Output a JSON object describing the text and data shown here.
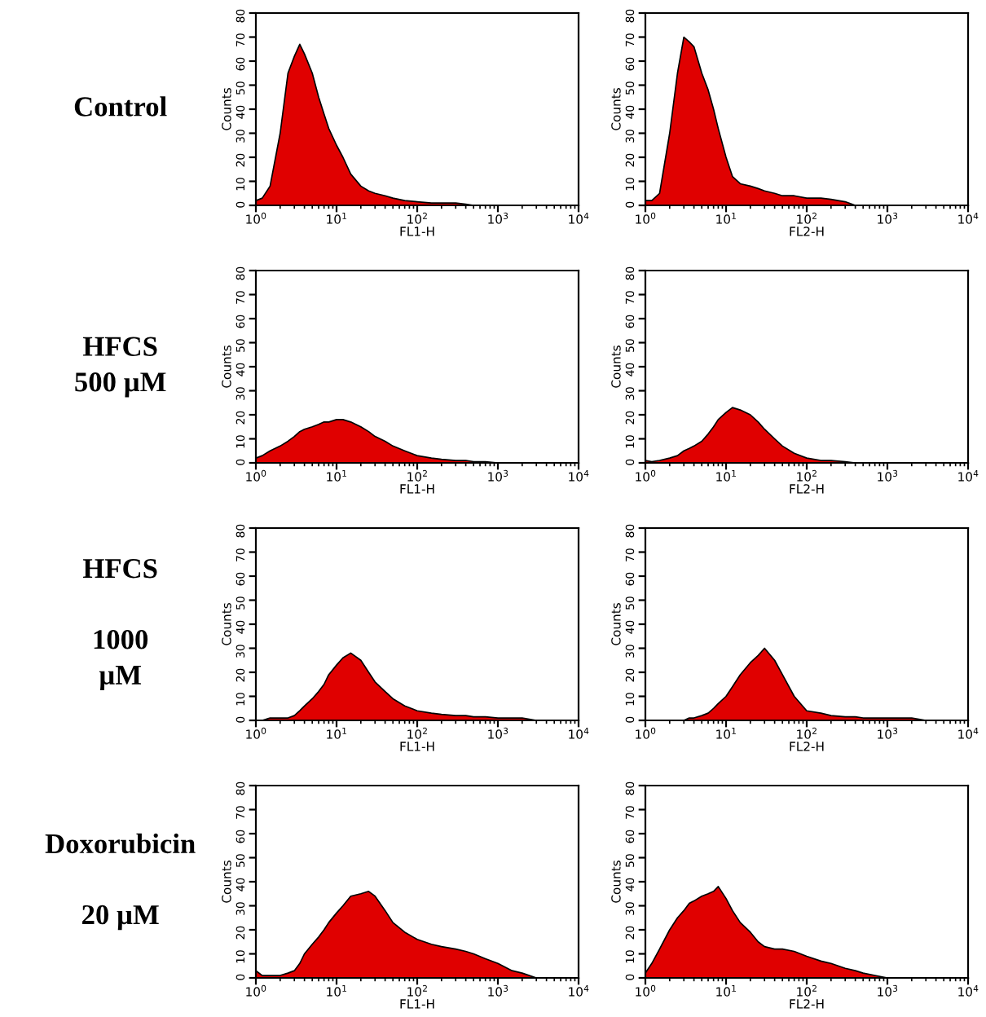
{
  "chart_data": [
    {
      "type": "area",
      "xlabel": "FL1-H",
      "ylabel": "Counts",
      "log": "x",
      "xlim": [
        1,
        10000
      ],
      "ylim": [
        0,
        80
      ],
      "xticks": [
        {
          "value": 1,
          "label": "10$^{0}$"
        },
        {
          "value": 10,
          "label": "10$^{1}$"
        },
        {
          "value": 100,
          "label": "10$^{2}$"
        },
        {
          "value": 1000,
          "label": "10$^{3}$"
        },
        {
          "value": 10000,
          "label": "10$^{4}$"
        }
      ],
      "yticks": [
        0,
        10,
        20,
        30,
        40,
        50,
        60,
        70,
        80
      ],
      "annotations": [
        "Control"
      ],
      "x": [
        1,
        1.2,
        1.5,
        2,
        2.5,
        3,
        3.5,
        4,
        5,
        6,
        7,
        8,
        10,
        12,
        15,
        20,
        25,
        30,
        40,
        50,
        70,
        100,
        150,
        200,
        300,
        400,
        500,
        700,
        1000,
        1500,
        2000,
        3000,
        5000,
        10000
      ],
      "series": [
        {
          "color": "#e00000",
          "values": [
            2,
            3,
            8,
            30,
            55,
            62,
            67,
            63,
            55,
            45,
            38,
            32,
            25,
            20,
            13,
            8,
            6,
            5,
            4,
            3,
            2,
            1.5,
            1,
            1,
            1,
            0.5,
            0,
            0,
            0,
            0,
            0,
            0,
            0,
            0
          ]
        }
      ]
    },
    {
      "type": "area",
      "xlabel": "FL2-H",
      "ylabel": "Counts",
      "log": "x",
      "xlim": [
        1,
        10000
      ],
      "ylim": [
        0,
        80
      ],
      "xticks": [
        {
          "value": 1,
          "label": "10$^{0}$"
        },
        {
          "value": 10,
          "label": "10$^{1}$"
        },
        {
          "value": 100,
          "label": "10$^{2}$"
        },
        {
          "value": 1000,
          "label": "10$^{3}$"
        },
        {
          "value": 10000,
          "label": "10$^{4}$"
        }
      ],
      "yticks": [
        0,
        10,
        20,
        30,
        40,
        50,
        60,
        70,
        80
      ],
      "x": [
        1,
        1.2,
        1.5,
        2,
        2.5,
        3,
        3.5,
        4,
        5,
        6,
        7,
        8,
        10,
        12,
        15,
        20,
        25,
        30,
        40,
        50,
        70,
        100,
        150,
        200,
        300,
        400,
        500,
        700,
        1000,
        1500,
        2000,
        3000,
        5000,
        10000
      ],
      "series": [
        {
          "color": "#e00000",
          "values": [
            2,
            2,
            5,
            30,
            55,
            70,
            68,
            66,
            55,
            48,
            40,
            32,
            20,
            12,
            9,
            8,
            7,
            6,
            5,
            4,
            4,
            3,
            3,
            2.5,
            1.5,
            0,
            0,
            0,
            0,
            0,
            0,
            0,
            0,
            0
          ]
        }
      ]
    },
    {
      "type": "area",
      "xlabel": "FL1-H",
      "ylabel": "Counts",
      "log": "x",
      "xlim": [
        1,
        10000
      ],
      "ylim": [
        0,
        80
      ],
      "xticks": [
        {
          "value": 1,
          "label": "10$^{0}$"
        },
        {
          "value": 10,
          "label": "10$^{1}$"
        },
        {
          "value": 100,
          "label": "10$^{2}$"
        },
        {
          "value": 1000,
          "label": "10$^{3}$"
        },
        {
          "value": 10000,
          "label": "10$^{4}$"
        }
      ],
      "yticks": [
        0,
        10,
        20,
        30,
        40,
        50,
        60,
        70,
        80
      ],
      "annotations": [
        "HFCS\n500 µM"
      ],
      "x": [
        1,
        1.2,
        1.5,
        2,
        2.5,
        3,
        3.5,
        4,
        5,
        6,
        7,
        8,
        10,
        12,
        15,
        20,
        25,
        30,
        40,
        50,
        70,
        100,
        150,
        200,
        300,
        400,
        500,
        700,
        1000,
        1500,
        2000,
        3000,
        5000,
        10000
      ],
      "series": [
        {
          "color": "#e00000",
          "values": [
            2,
            3,
            5,
            7,
            9,
            11,
            13,
            14,
            15,
            16,
            17,
            17,
            18,
            18,
            17,
            15,
            13,
            11,
            9,
            7,
            5,
            3,
            2,
            1.5,
            1,
            1,
            0.5,
            0.5,
            0,
            0,
            0,
            0,
            0,
            0
          ]
        }
      ]
    },
    {
      "type": "area",
      "xlabel": "FL2-H",
      "ylabel": "Counts",
      "log": "x",
      "xlim": [
        1,
        10000
      ],
      "ylim": [
        0,
        80
      ],
      "xticks": [
        {
          "value": 1,
          "label": "10$^{0}$"
        },
        {
          "value": 10,
          "label": "10$^{1}$"
        },
        {
          "value": 100,
          "label": "10$^{2}$"
        },
        {
          "value": 1000,
          "label": "10$^{3}$"
        },
        {
          "value": 10000,
          "label": "10$^{4}$"
        }
      ],
      "yticks": [
        0,
        10,
        20,
        30,
        40,
        50,
        60,
        70,
        80
      ],
      "x": [
        1,
        1.2,
        1.5,
        2,
        2.5,
        3,
        3.5,
        4,
        5,
        6,
        7,
        8,
        10,
        12,
        15,
        20,
        25,
        30,
        40,
        50,
        70,
        100,
        150,
        200,
        300,
        400,
        500,
        700,
        1000,
        1500,
        2000,
        3000,
        5000,
        10000
      ],
      "series": [
        {
          "color": "#e00000",
          "values": [
            1,
            0.5,
            1,
            2,
            3,
            5,
            6,
            7,
            9,
            12,
            15,
            18,
            21,
            23,
            22,
            20,
            17,
            14,
            10,
            7,
            4,
            2,
            1,
            1,
            0.5,
            0,
            0,
            0,
            0,
            0,
            0,
            0,
            0,
            0
          ]
        }
      ]
    },
    {
      "type": "area",
      "xlabel": "FL1-H",
      "ylabel": "Counts",
      "log": "x",
      "xlim": [
        1,
        10000
      ],
      "ylim": [
        0,
        80
      ],
      "xticks": [
        {
          "value": 1,
          "label": "10$^{0}$"
        },
        {
          "value": 10,
          "label": "10$^{1}$"
        },
        {
          "value": 100,
          "label": "10$^{2}$"
        },
        {
          "value": 1000,
          "label": "10$^{3}$"
        },
        {
          "value": 10000,
          "label": "10$^{4}$"
        }
      ],
      "yticks": [
        0,
        10,
        20,
        30,
        40,
        50,
        60,
        70,
        80
      ],
      "annotations": [
        "HFCS\n\n1000\nµM"
      ],
      "x": [
        1,
        1.2,
        1.5,
        2,
        2.5,
        3,
        3.5,
        4,
        5,
        6,
        7,
        8,
        10,
        12,
        15,
        20,
        25,
        30,
        40,
        50,
        70,
        100,
        150,
        200,
        300,
        400,
        500,
        700,
        1000,
        1500,
        2000,
        3000,
        5000,
        10000
      ],
      "series": [
        {
          "color": "#e00000",
          "values": [
            0,
            0,
            1,
            1,
            1,
            2,
            4,
            6,
            9,
            12,
            15,
            19,
            23,
            26,
            28,
            25,
            20,
            16,
            12,
            9,
            6,
            4,
            3,
            2.5,
            2,
            2,
            1.5,
            1.5,
            1,
            1,
            1,
            0,
            0,
            0
          ]
        }
      ]
    },
    {
      "type": "area",
      "xlabel": "FL2-H",
      "ylabel": "Counts",
      "log": "x",
      "xlim": [
        1,
        10000
      ],
      "ylim": [
        0,
        80
      ],
      "xticks": [
        {
          "value": 1,
          "label": "10$^{0}$"
        },
        {
          "value": 10,
          "label": "10$^{1}$"
        },
        {
          "value": 100,
          "label": "10$^{2}$"
        },
        {
          "value": 1000,
          "label": "10$^{3}$"
        },
        {
          "value": 10000,
          "label": "10$^{4}$"
        }
      ],
      "yticks": [
        0,
        10,
        20,
        30,
        40,
        50,
        60,
        70,
        80
      ],
      "x": [
        1,
        1.2,
        1.5,
        2,
        2.5,
        3,
        3.5,
        4,
        5,
        6,
        7,
        8,
        10,
        12,
        15,
        20,
        25,
        30,
        40,
        50,
        70,
        100,
        150,
        200,
        300,
        400,
        500,
        700,
        1000,
        1500,
        2000,
        3000,
        5000,
        10000
      ],
      "series": [
        {
          "color": "#e00000",
          "values": [
            0,
            0,
            0,
            0,
            0,
            0,
            1,
            1,
            2,
            3,
            5,
            7,
            10,
            14,
            19,
            24,
            27,
            30,
            25,
            19,
            10,
            4,
            3,
            2,
            1.5,
            1.5,
            1,
            1,
            1,
            1,
            1,
            0,
            0,
            0
          ]
        }
      ]
    },
    {
      "type": "area",
      "xlabel": "FL1-H",
      "ylabel": "Counts",
      "log": "x",
      "xlim": [
        1,
        10000
      ],
      "ylim": [
        0,
        80
      ],
      "xticks": [
        {
          "value": 1,
          "label": "10$^{0}$"
        },
        {
          "value": 10,
          "label": "10$^{1}$"
        },
        {
          "value": 100,
          "label": "10$^{2}$"
        },
        {
          "value": 1000,
          "label": "10$^{3}$"
        },
        {
          "value": 10000,
          "label": "10$^{4}$"
        }
      ],
      "yticks": [
        0,
        10,
        20,
        30,
        40,
        50,
        60,
        70,
        80
      ],
      "annotations": [
        "Doxorubicin\n\n20 µM"
      ],
      "x": [
        1,
        1.2,
        1.5,
        2,
        2.5,
        3,
        3.5,
        4,
        5,
        6,
        7,
        8,
        10,
        12,
        15,
        20,
        25,
        30,
        40,
        50,
        70,
        100,
        150,
        200,
        300,
        400,
        500,
        700,
        1000,
        1500,
        2000,
        3000,
        5000,
        10000
      ],
      "series": [
        {
          "color": "#e00000",
          "values": [
            3,
            1,
            1,
            1,
            2,
            3,
            6,
            10,
            14,
            17,
            20,
            23,
            27,
            30,
            34,
            35,
            36,
            34,
            28,
            23,
            19,
            16,
            14,
            13,
            12,
            11,
            10,
            8,
            6,
            3,
            2,
            0,
            0,
            0
          ]
        }
      ]
    },
    {
      "type": "area",
      "xlabel": "FL2-H",
      "ylabel": "Counts",
      "log": "x",
      "xlim": [
        1,
        10000
      ],
      "ylim": [
        0,
        80
      ],
      "xticks": [
        {
          "value": 1,
          "label": "10$^{0}$"
        },
        {
          "value": 10,
          "label": "10$^{1}$"
        },
        {
          "value": 100,
          "label": "10$^{2}$"
        },
        {
          "value": 1000,
          "label": "10$^{3}$"
        },
        {
          "value": 10000,
          "label": "10$^{4}$"
        }
      ],
      "yticks": [
        0,
        10,
        20,
        30,
        40,
        50,
        60,
        70,
        80
      ],
      "x": [
        1,
        1.2,
        1.5,
        2,
        2.5,
        3,
        3.5,
        4,
        5,
        6,
        7,
        8,
        10,
        12,
        15,
        20,
        25,
        30,
        40,
        50,
        70,
        100,
        150,
        200,
        300,
        400,
        500,
        700,
        1000,
        1500,
        2000,
        3000,
        5000,
        10000
      ],
      "series": [
        {
          "color": "#e00000",
          "values": [
            2,
            6,
            12,
            20,
            25,
            28,
            31,
            32,
            34,
            35,
            36,
            38,
            33,
            28,
            23,
            19,
            15,
            13,
            12,
            12,
            11,
            9,
            7,
            6,
            4,
            3,
            2,
            1,
            0,
            0,
            0,
            0,
            0,
            0
          ]
        }
      ]
    }
  ]
}
